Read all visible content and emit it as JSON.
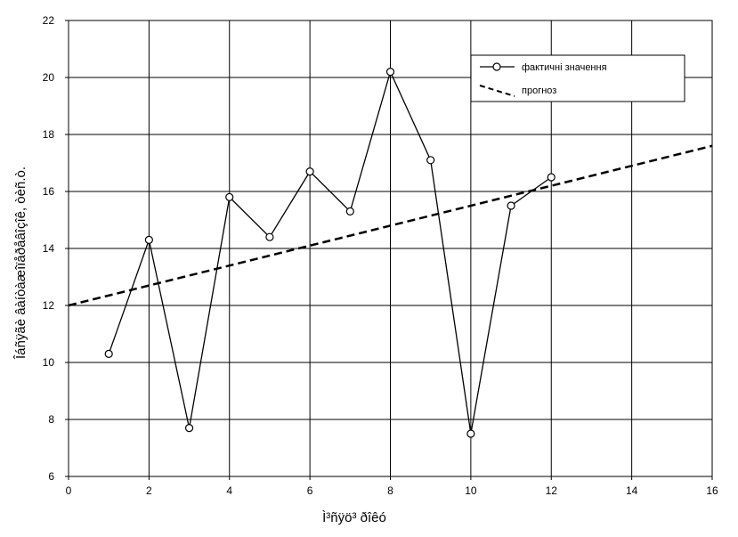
{
  "chart_data": {
    "type": "line",
    "xlabel": "Ì³ñÿö³ ðîêó",
    "ylabel": "Îáñÿãè âàíòàæîïåðåâîçîê, òèñ.ò.",
    "xlim": [
      0,
      16
    ],
    "ylim": [
      6,
      22
    ],
    "x_ticks": [
      "0",
      "2",
      "4",
      "6",
      "8",
      "10",
      "12",
      "14",
      "16"
    ],
    "y_ticks": [
      "6",
      "8",
      "10",
      "12",
      "14",
      "16",
      "18",
      "20",
      "22"
    ],
    "grid": true,
    "legend_position": "top-right",
    "series": [
      {
        "name": "фактичні значення",
        "style": "solid-with-circle-markers",
        "color": "#000000",
        "x": [
          1,
          2,
          3,
          4,
          5,
          6,
          7,
          8,
          9,
          10,
          11,
          12
        ],
        "y": [
          10.3,
          14.3,
          7.7,
          15.8,
          14.4,
          16.7,
          15.3,
          20.2,
          17.1,
          7.5,
          15.5,
          16.5
        ]
      },
      {
        "name": "прогноз",
        "style": "dashed",
        "color": "#000000",
        "x": [
          0,
          16
        ],
        "y": [
          12.0,
          17.6
        ]
      }
    ]
  }
}
